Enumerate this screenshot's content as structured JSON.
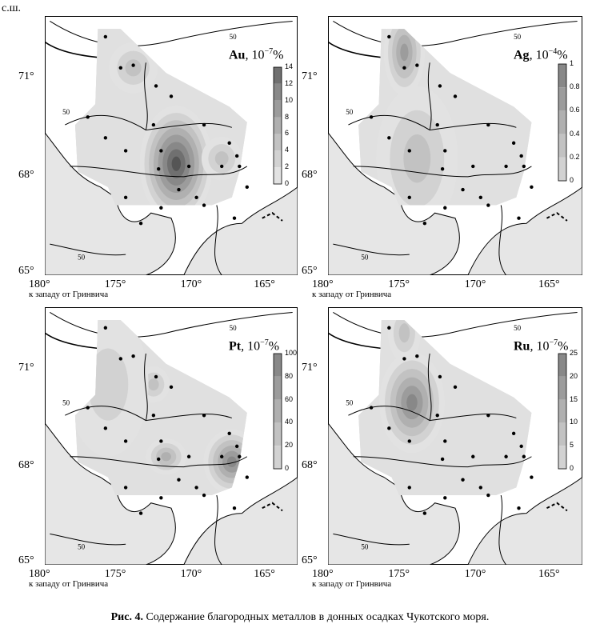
{
  "corner_label": "с.ш.",
  "lon_caption": "к западу от Гринвича",
  "lat_ticks": [
    "71°",
    "68°",
    "65°"
  ],
  "lon_ticks": [
    "180°",
    "175°",
    "170°",
    "165°"
  ],
  "contour_label": "50",
  "panels": [
    {
      "id": "au",
      "element": "Au",
      "unit": "10",
      "exp": "−7",
      "pct": "%",
      "scale": [
        "14",
        "12",
        "10",
        "8",
        "6",
        "4",
        "2",
        "0"
      ]
    },
    {
      "id": "ag",
      "element": "Ag",
      "unit": "10",
      "exp": "−4",
      "pct": "%",
      "scale": [
        "1",
        "0.8",
        "0.6",
        "0.4",
        "0.2",
        "0"
      ]
    },
    {
      "id": "pt",
      "element": "Pt",
      "unit": "10",
      "exp": "−7",
      "pct": "%",
      "scale": [
        "100",
        "80",
        "60",
        "40",
        "20",
        "0"
      ]
    },
    {
      "id": "ru",
      "element": "Ru",
      "unit": "10",
      "exp": "−7",
      "pct": "%",
      "scale": [
        "25",
        "20",
        "15",
        "10",
        "5",
        "0"
      ]
    }
  ],
  "caption": {
    "fig": "Рис. 4.",
    "text": " Содержание благородных металлов в донных осадках Чукотского моря."
  }
}
